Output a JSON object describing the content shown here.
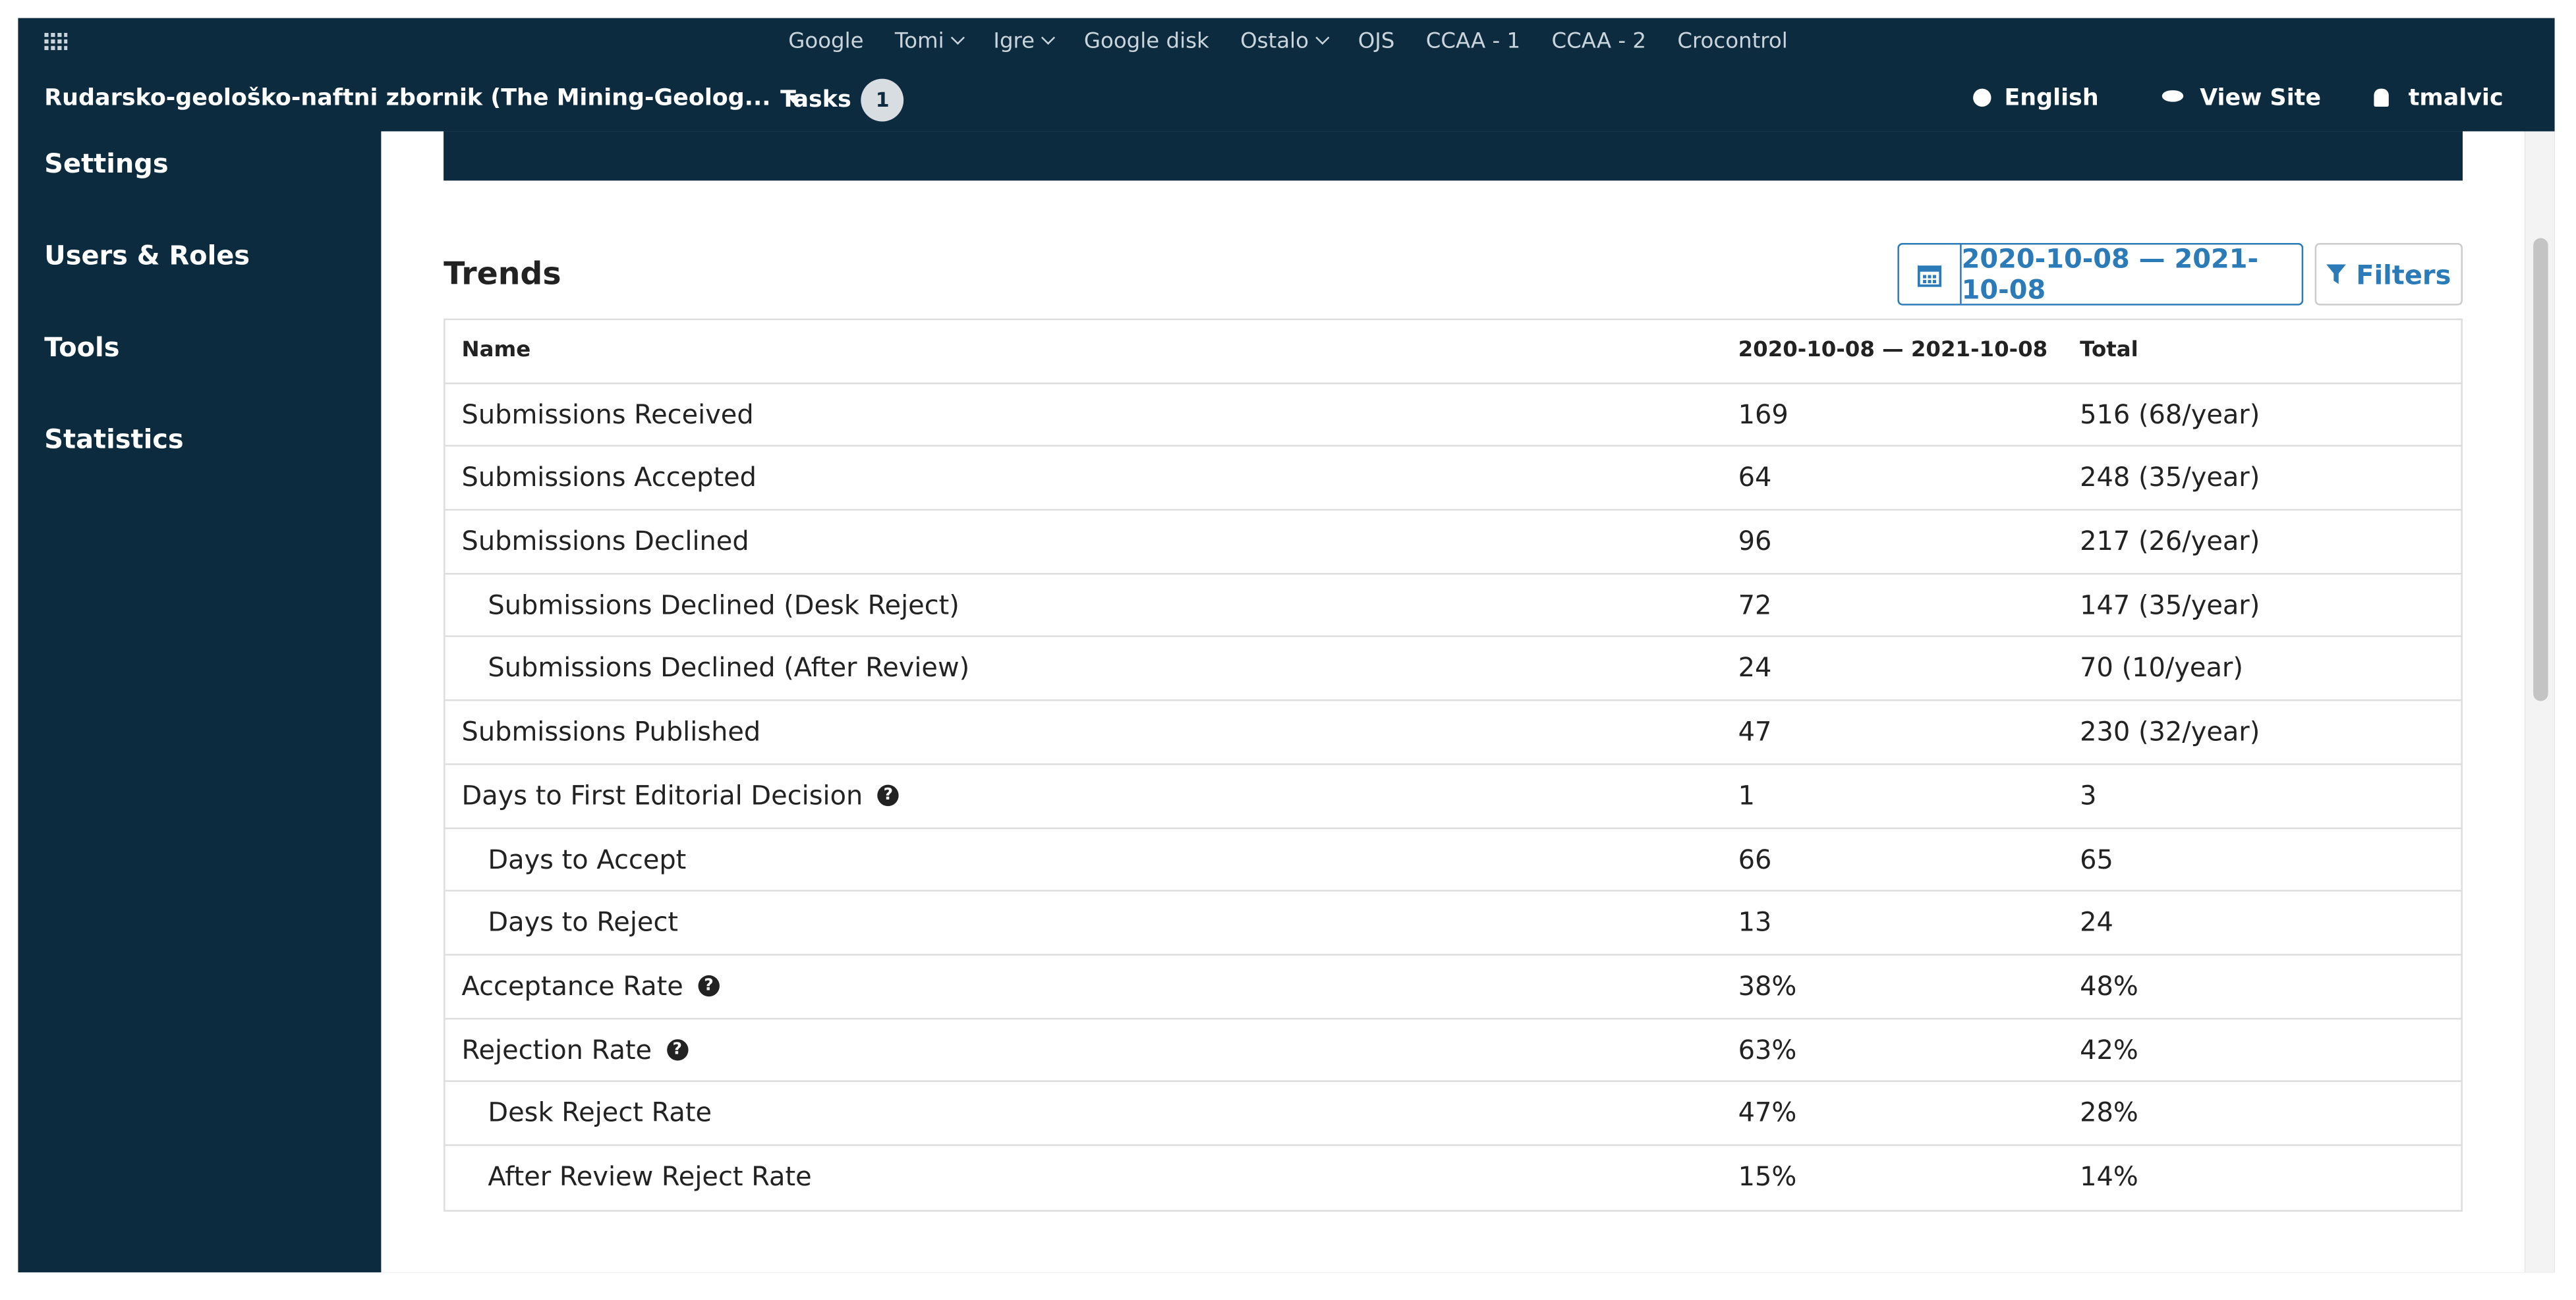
{
  "topbar": {
    "links": [
      "Google",
      "Tomi",
      "Igre",
      "Google disk",
      "Ostalo",
      "OJS",
      "CCAA - 1",
      "CCAA - 2",
      "Crocontrol"
    ]
  },
  "header": {
    "journal": "Rudarsko-geološko-naftni zbornik (The Mining-Geolog...",
    "tasks": "Tasks",
    "tasks_count": 1,
    "language": "English",
    "view_site": "View Site",
    "user": "tmalvic"
  },
  "sidebar": [
    "Settings",
    "Users & Roles",
    "Tools",
    "Statistics"
  ],
  "trends": {
    "title": "Trends",
    "date_range": "2020-10-08 — 2021-10-08",
    "filters": "Filters",
    "columns": [
      "Name",
      "2020-10-08 — 2021-10-08",
      "Total"
    ],
    "rows": [
      [
        "Submissions Received",
        169,
        "516 (68/year)"
      ],
      [
        "Submissions Accepted",
        64,
        "248 (35/year)"
      ],
      [
        "Submissions Declined",
        96,
        "217 (26/year)"
      ],
      [
        "Submissions Declined (Desk Reject)",
        72,
        "147 (35/year)"
      ],
      [
        "Submissions Declined (After Review)",
        24,
        "70 (10/year)"
      ],
      [
        "Submissions Published",
        47,
        "230 (32/year)"
      ],
      [
        "Days to First Editorial Decision",
        1,
        3
      ],
      [
        "Days to Accept",
        66,
        65
      ],
      [
        "Days to Reject",
        13,
        24
      ],
      [
        "Acceptance Rate",
        "38%",
        "48%"
      ],
      [
        "Rejection Rate",
        "63%",
        "42%"
      ],
      [
        "Desk Reject Rate",
        "47%",
        "28%"
      ],
      [
        "After Review Reject Rate",
        "15%",
        "14%"
      ]
    ]
  }
}
